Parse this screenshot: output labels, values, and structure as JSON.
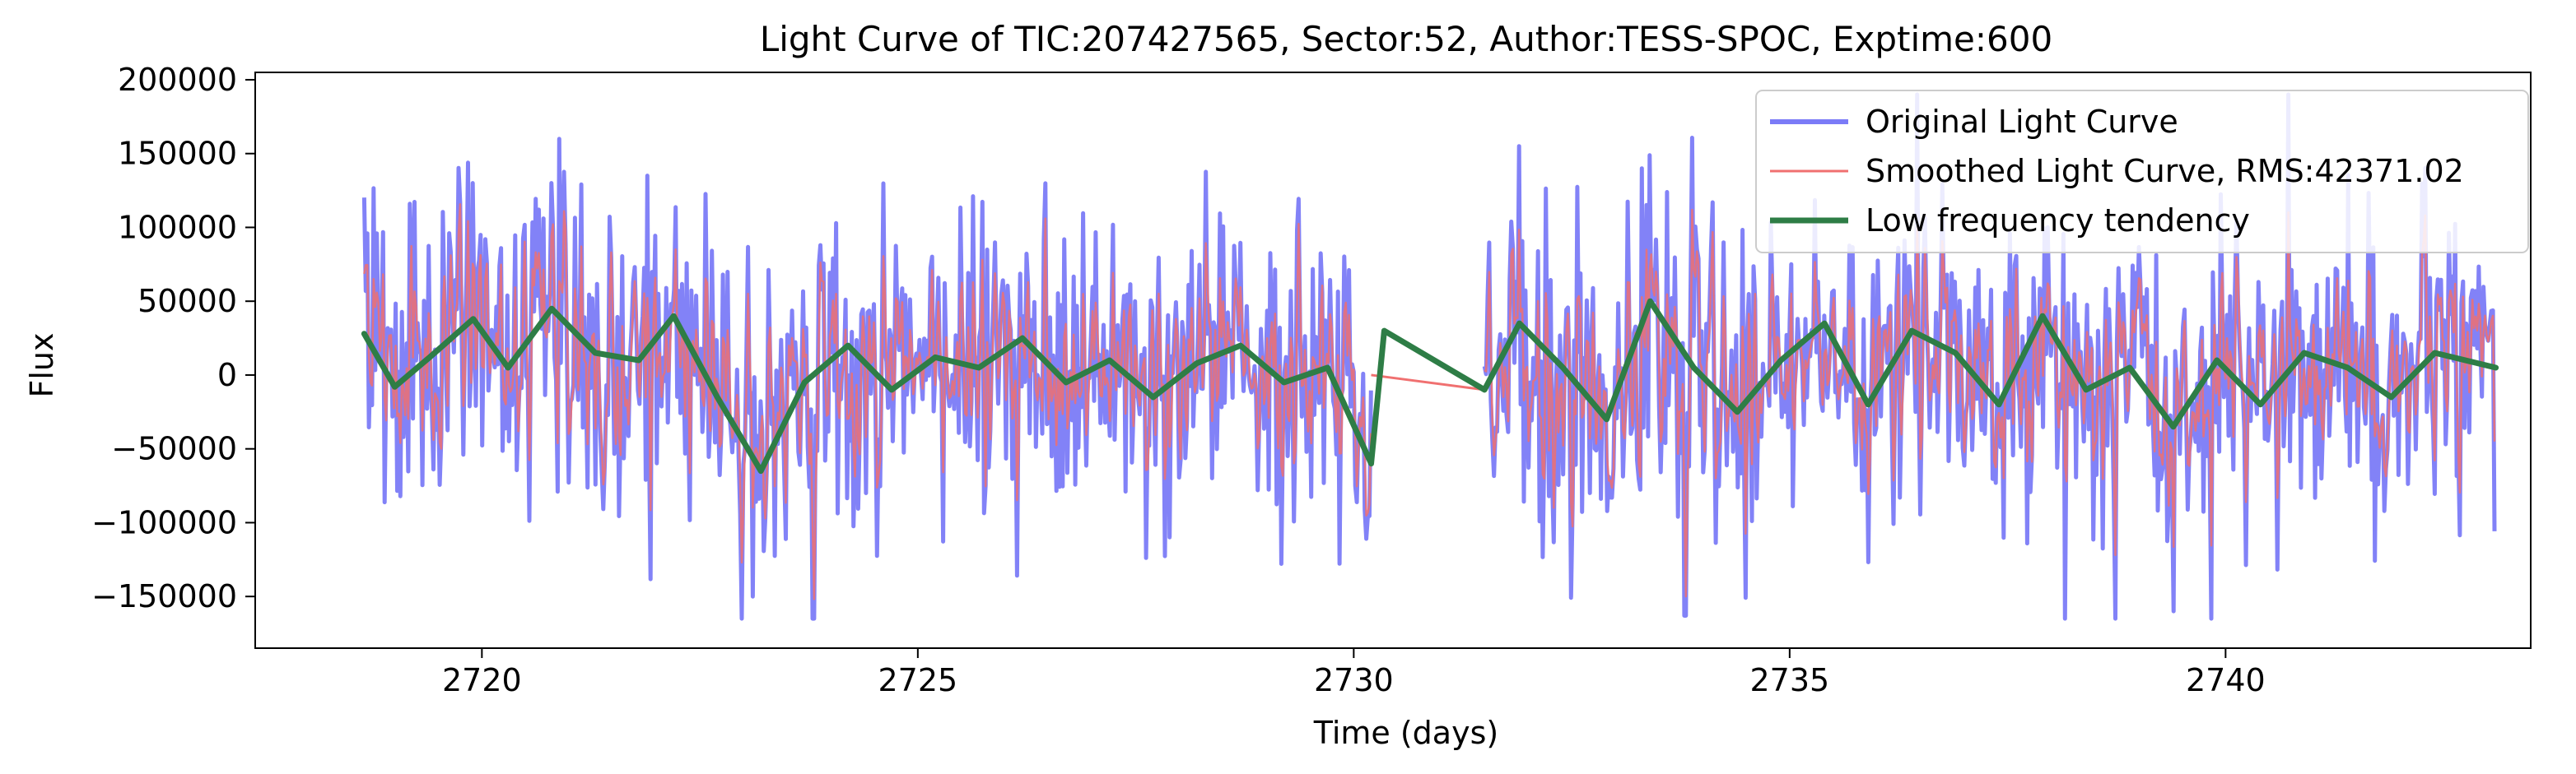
{
  "chart_data": {
    "type": "line",
    "title": "Light Curve of TIC:207427565, Sector:52, Author:TESS-SPOC, Exptime:600",
    "xlabel": "Time (days)",
    "ylabel": "Flux",
    "xlim": [
      2717.4,
      2743.5
    ],
    "ylim": [
      -185000,
      205000
    ],
    "x_ticks": [
      2720,
      2725,
      2730,
      2735,
      2740
    ],
    "y_ticks": [
      -150000,
      -100000,
      -50000,
      0,
      50000,
      100000,
      150000,
      200000
    ],
    "grid": false,
    "legend_position": "top-right",
    "segments": [
      {
        "x_start": 2718.65,
        "x_end": 2730.2
      },
      {
        "x_start": 2731.5,
        "x_end": 2743.1
      }
    ],
    "series": [
      {
        "name": "Original Light Curve",
        "color": "#7b7bf7",
        "cadence_days": 0.00694,
        "amplitude_range": [
          -165000,
          190000
        ],
        "sample_peaks": [
          {
            "x": 2719.9,
            "y": 130000
          },
          {
            "x": 2720.8,
            "y": 130000
          },
          {
            "x": 2721.9,
            "y": 135000
          },
          {
            "x": 2723.1,
            "y": -150000
          },
          {
            "x": 2723.8,
            "y": -165000
          },
          {
            "x": 2731.9,
            "y": 155000
          },
          {
            "x": 2733.3,
            "y": 140000
          },
          {
            "x": 2733.8,
            "y": -163000
          },
          {
            "x": 2739.4,
            "y": -160000
          }
        ]
      },
      {
        "name": "Smoothed Light Curve, RMS:42371.02",
        "color": "#f07070",
        "rms": 42371.02
      },
      {
        "name": "Low frequency tendency",
        "color": "#2e7d46",
        "x": [
          2718.65,
          2719.0,
          2719.4,
          2719.9,
          2720.3,
          2720.8,
          2721.3,
          2721.8,
          2722.2,
          2722.7,
          2723.2,
          2723.7,
          2724.2,
          2724.7,
          2725.2,
          2725.7,
          2726.2,
          2726.7,
          2727.2,
          2727.7,
          2728.2,
          2728.7,
          2729.2,
          2729.7,
          2730.2,
          2730.35,
          2731.5,
          2731.9,
          2732.4,
          2732.9,
          2733.4,
          2733.9,
          2734.4,
          2734.9,
          2735.4,
          2735.9,
          2736.4,
          2736.9,
          2737.4,
          2737.9,
          2738.4,
          2738.9,
          2739.4,
          2739.9,
          2740.4,
          2740.9,
          2741.4,
          2741.9,
          2742.4,
          2743.1
        ],
        "y": [
          28000,
          -8000,
          12000,
          38000,
          5000,
          45000,
          15000,
          10000,
          40000,
          -15000,
          -65000,
          -5000,
          20000,
          -10000,
          12000,
          5000,
          25000,
          -5000,
          10000,
          -15000,
          8000,
          20000,
          -5000,
          5000,
          -60000,
          30000,
          -10000,
          35000,
          5000,
          -30000,
          50000,
          5000,
          -25000,
          10000,
          35000,
          -20000,
          30000,
          15000,
          -20000,
          40000,
          -10000,
          5000,
          -35000,
          10000,
          -20000,
          15000,
          5000,
          -15000,
          15000,
          5000
        ]
      }
    ]
  }
}
